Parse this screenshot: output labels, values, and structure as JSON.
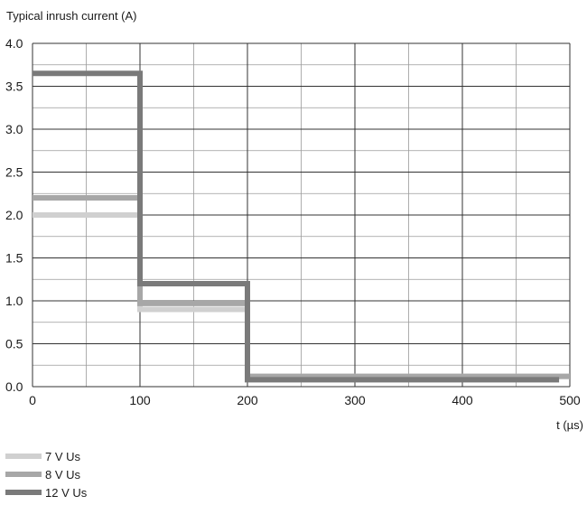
{
  "chart_data": {
    "type": "line",
    "step": true,
    "ylabel": "Typical inrush current (A)",
    "xlabel": "t (µs)",
    "xlim": [
      0,
      500
    ],
    "ylim": [
      0,
      4.0
    ],
    "x_ticks": [
      0,
      100,
      200,
      300,
      400,
      500
    ],
    "x_tick_labels": [
      "0",
      "100",
      "200",
      "300",
      "400",
      "500"
    ],
    "y_ticks": [
      0,
      0.5,
      1.0,
      1.5,
      2.0,
      2.5,
      3.0,
      3.5,
      4.0
    ],
    "y_tick_labels": [
      "0.0",
      "0.5",
      "1.0",
      "1.5",
      "2.0",
      "2.5",
      "3.0",
      "3.5",
      "4.0"
    ],
    "grid": true,
    "legend_position": "bottom-left",
    "series": [
      {
        "name": "7 V Us",
        "color": "#d0d0d0",
        "x": [
          0,
          100,
          200,
          500
        ],
        "y": [
          2.0,
          0.9,
          0.12,
          0.12
        ]
      },
      {
        "name": "8 V Us",
        "color": "#a7a7a7",
        "x": [
          0,
          100,
          200,
          500
        ],
        "y": [
          2.2,
          0.97,
          0.12,
          0.12
        ]
      },
      {
        "name": "12 V Us",
        "color": "#7a7a7a",
        "x": [
          0,
          100,
          200,
          490
        ],
        "y": [
          3.65,
          1.2,
          0.08,
          0.08
        ]
      }
    ]
  }
}
